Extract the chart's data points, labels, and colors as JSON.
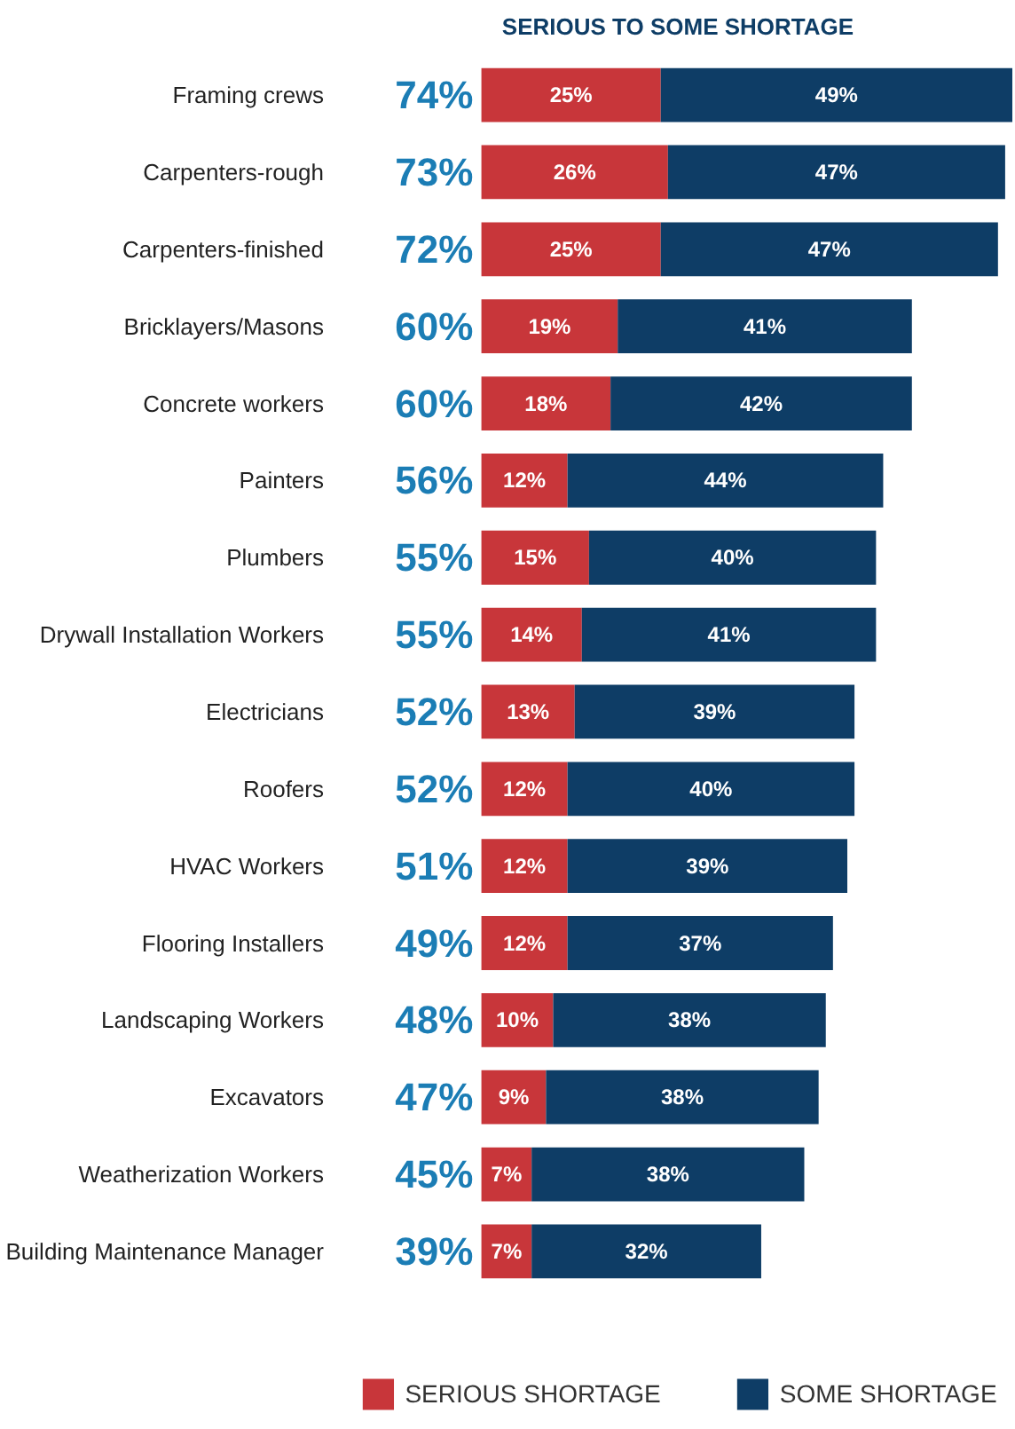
{
  "chart_data": {
    "type": "bar",
    "orientation": "horizontal",
    "stacked": true,
    "title": "SERIOUS TO SOME SHORTAGE",
    "categories": [
      "Framing crews",
      "Carpenters-rough",
      "Carpenters-finished",
      "Bricklayers/Masons",
      "Concrete workers",
      "Painters",
      "Plumbers",
      "Drywall Installation Workers",
      "Electricians",
      "Roofers",
      "HVAC Workers",
      "Flooring Installers",
      "Landscaping Workers",
      "Excavators",
      "Weatherization Workers",
      "Building Maintenance Manager"
    ],
    "series": [
      {
        "name": "SERIOUS SHORTAGE",
        "color": "#c8363a",
        "values": [
          25,
          26,
          25,
          19,
          18,
          12,
          15,
          14,
          13,
          12,
          12,
          12,
          10,
          9,
          7,
          7
        ],
        "value_labels": [
          "25%",
          "26%",
          "25%",
          "19%",
          "18%",
          "12%",
          "15%",
          "14%",
          "13%",
          "12%",
          "12%",
          "12%",
          "10%",
          "9%",
          "7%",
          "7%"
        ]
      },
      {
        "name": "SOME SHORTAGE",
        "color": "#0e3d66",
        "values": [
          49,
          47,
          47,
          41,
          42,
          44,
          40,
          41,
          39,
          40,
          39,
          37,
          38,
          38,
          38,
          32
        ],
        "value_labels": [
          "49%",
          "47%",
          "47%",
          "41%",
          "42%",
          "44%",
          "40%",
          "41%",
          "39%",
          "40%",
          "39%",
          "37%",
          "38%",
          "38%",
          "38%",
          "32%"
        ]
      }
    ],
    "totals": [
      "74%",
      "73%",
      "72%",
      "60%",
      "60%",
      "56%",
      "55%",
      "55%",
      "52%",
      "52%",
      "51%",
      "49%",
      "48%",
      "47%",
      "45%",
      "39%"
    ],
    "tick_labels": "y",
    "grid": false,
    "legend": "bottom"
  }
}
